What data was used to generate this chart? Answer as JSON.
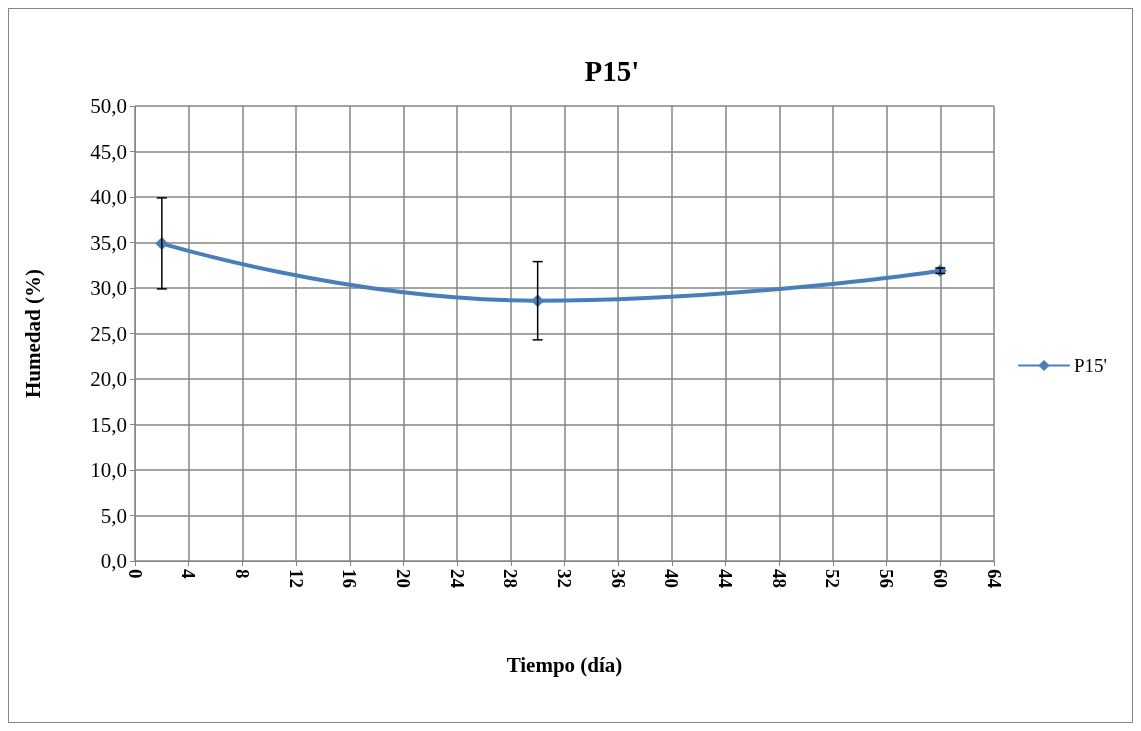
{
  "chart_data": {
    "type": "line",
    "title": "P15'",
    "xlabel": "Tiempo (día)",
    "ylabel": "Humedad (%)",
    "x": [
      2,
      30,
      60
    ],
    "series": [
      {
        "name": "P15'",
        "color": "#4a7ebb",
        "values": [
          34.9,
          28.6,
          31.9
        ],
        "errors": [
          5,
          4.3,
          0.3
        ]
      }
    ],
    "xlim": [
      0,
      64
    ],
    "xticks": [
      0,
      4,
      8,
      12,
      16,
      20,
      24,
      28,
      32,
      36,
      40,
      44,
      48,
      52,
      56,
      60,
      64
    ],
    "ylim": [
      0,
      50
    ],
    "yticks": [
      {
        "value": 0,
        "label": "0,0"
      },
      {
        "value": 5,
        "label": "5,0"
      },
      {
        "value": 10,
        "label": "10,0"
      },
      {
        "value": 15,
        "label": "15,0"
      },
      {
        "value": 20,
        "label": "20,0"
      },
      {
        "value": 25,
        "label": "25,0"
      },
      {
        "value": 30,
        "label": "30,0"
      },
      {
        "value": 35,
        "label": "35,0"
      },
      {
        "value": 40,
        "label": "40,0"
      },
      {
        "value": 45,
        "label": "45,0"
      },
      {
        "value": 50,
        "label": "50,0"
      }
    ],
    "grid": true,
    "legend": "right",
    "marker": "diamond",
    "line_style": "solid"
  }
}
